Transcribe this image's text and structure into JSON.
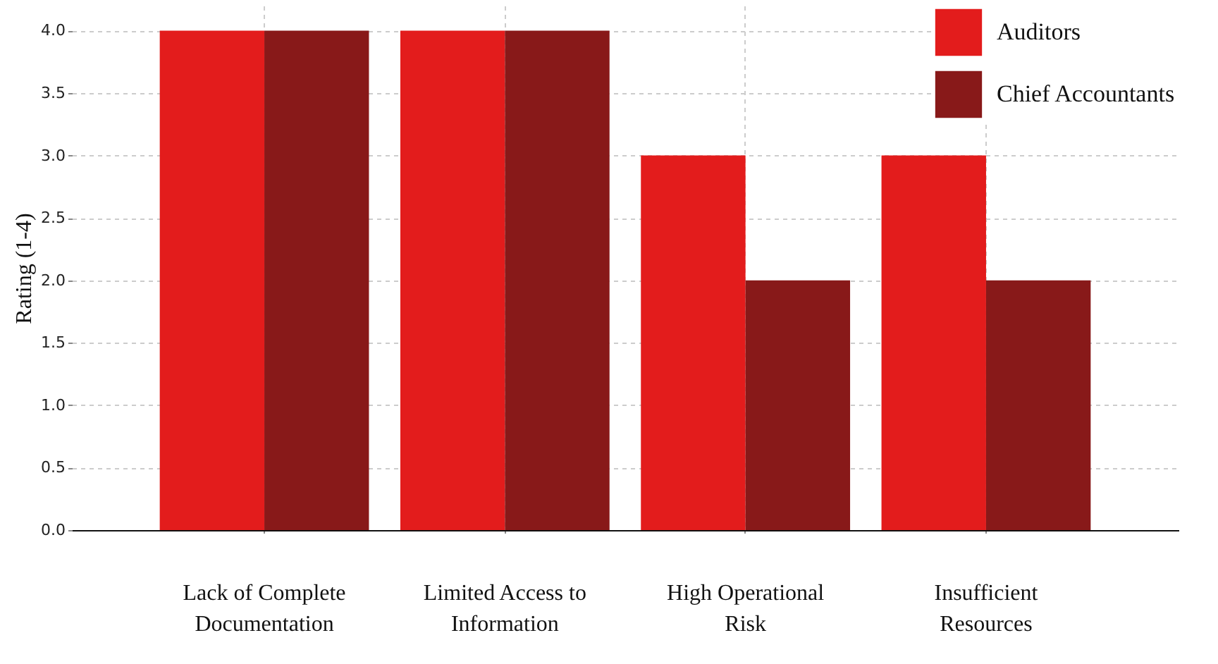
{
  "chart_data": {
    "type": "bar",
    "ylabel": "Rating (1-4)",
    "categories": [
      "Lack of Complete Documentation",
      "Limited Access to Information",
      "High Operational Risk",
      "Insufficient Resources"
    ],
    "series": [
      {
        "name": "Auditors",
        "color": "#e31c1c",
        "values": [
          4,
          4,
          3,
          3
        ]
      },
      {
        "name": "Chief Accountants",
        "color": "#881919",
        "values": [
          4,
          4,
          2,
          2
        ]
      }
    ],
    "ylim": [
      0,
      4.2
    ],
    "yticks": [
      {
        "value": 0,
        "label": "0.0"
      },
      0.5,
      {
        "value": 1,
        "label": "1.0"
      },
      1.5,
      {
        "value": 2,
        "label": "2.0"
      },
      2.5,
      {
        "value": 3,
        "label": "3.0"
      },
      3.5,
      {
        "value": 4,
        "label": "4.0"
      }
    ],
    "grid": true,
    "legend": "top right"
  }
}
